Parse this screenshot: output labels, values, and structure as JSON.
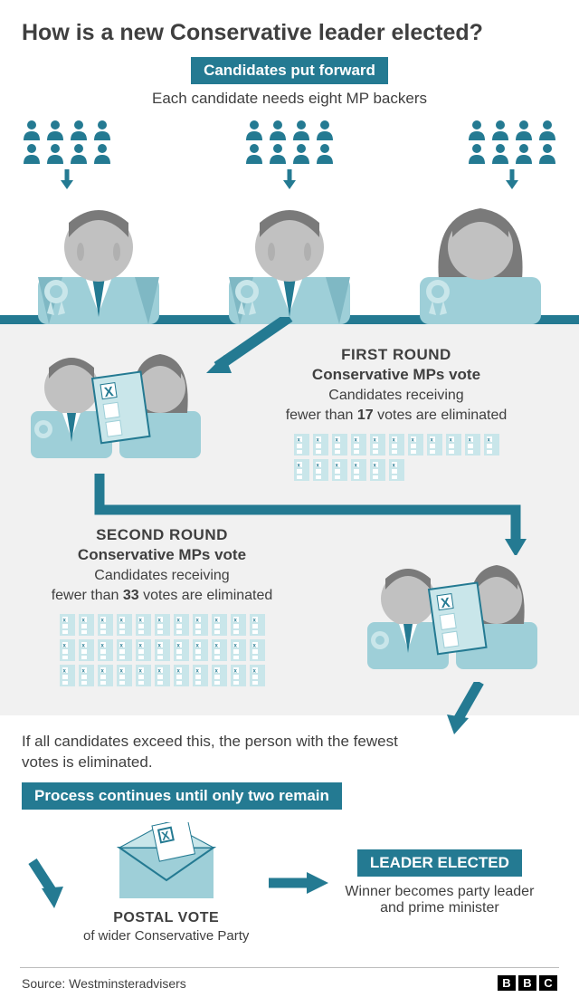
{
  "colors": {
    "teal_dark": "#247a92",
    "teal_light": "#9ecfd8",
    "grey_bg": "#f1f1f1",
    "grey_face": "#c1c1c1",
    "grey_hair": "#7a7a7a",
    "text": "#3f3f3f"
  },
  "title": "How is a new Conservative leader elected?",
  "step1": {
    "badge": "Candidates put forward",
    "sub": "Each candidate needs eight MP backers",
    "backers_per_candidate": 8,
    "candidates_count": 3
  },
  "round1": {
    "heading": "FIRST ROUND",
    "sub": "Conservative MPs vote",
    "desc_pre": "Candidates receiving\nfewer than ",
    "threshold": "17",
    "desc_post": " votes are eliminated",
    "ballots": 17
  },
  "round2": {
    "heading": "SECOND ROUND",
    "sub": "Conservative MPs vote",
    "desc_pre": "Candidates receiving\nfewer than ",
    "threshold": "33",
    "desc_post": " votes are eliminated",
    "ballots": 33
  },
  "tiebreak": "If all candidates exceed this, the person with the fewest votes is eliminated.",
  "continue_badge": "Process continues until only two remain",
  "postal": {
    "label": "POSTAL VOTE",
    "sub": "of wider Conservative Party"
  },
  "leader": {
    "badge": "LEADER ELECTED",
    "sub": "Winner becomes party leader\nand prime minister"
  },
  "source_label": "Source:",
  "source_value": "Westminsteradvisers",
  "bbc": [
    "B",
    "B",
    "C"
  ]
}
